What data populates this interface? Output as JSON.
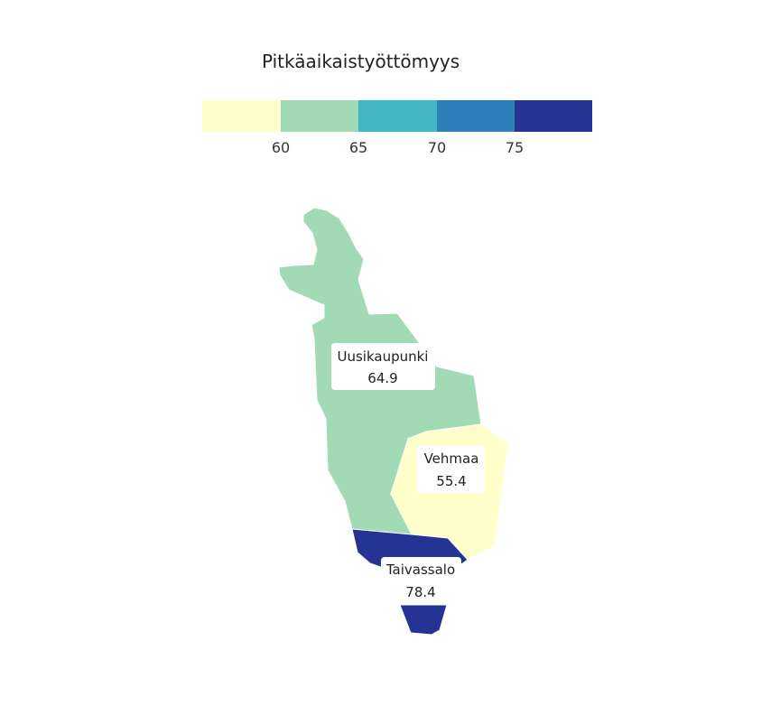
{
  "legend": {
    "title": "Pitkäaikaistyöttömyys",
    "colors": [
      "#ffffcc",
      "#a1dab4",
      "#41b6c4",
      "#2c7fb8",
      "#253494"
    ],
    "ticks": [
      "60",
      "65",
      "70",
      "75"
    ]
  },
  "regions": [
    {
      "name": "Uusikaupunki",
      "value": "64.9",
      "color": "#a1dab4"
    },
    {
      "name": "Vehmaa",
      "value": "55.4",
      "color": "#ffffcc"
    },
    {
      "name": "Taivassalo",
      "value": "78.4",
      "color": "#253494"
    }
  ]
}
